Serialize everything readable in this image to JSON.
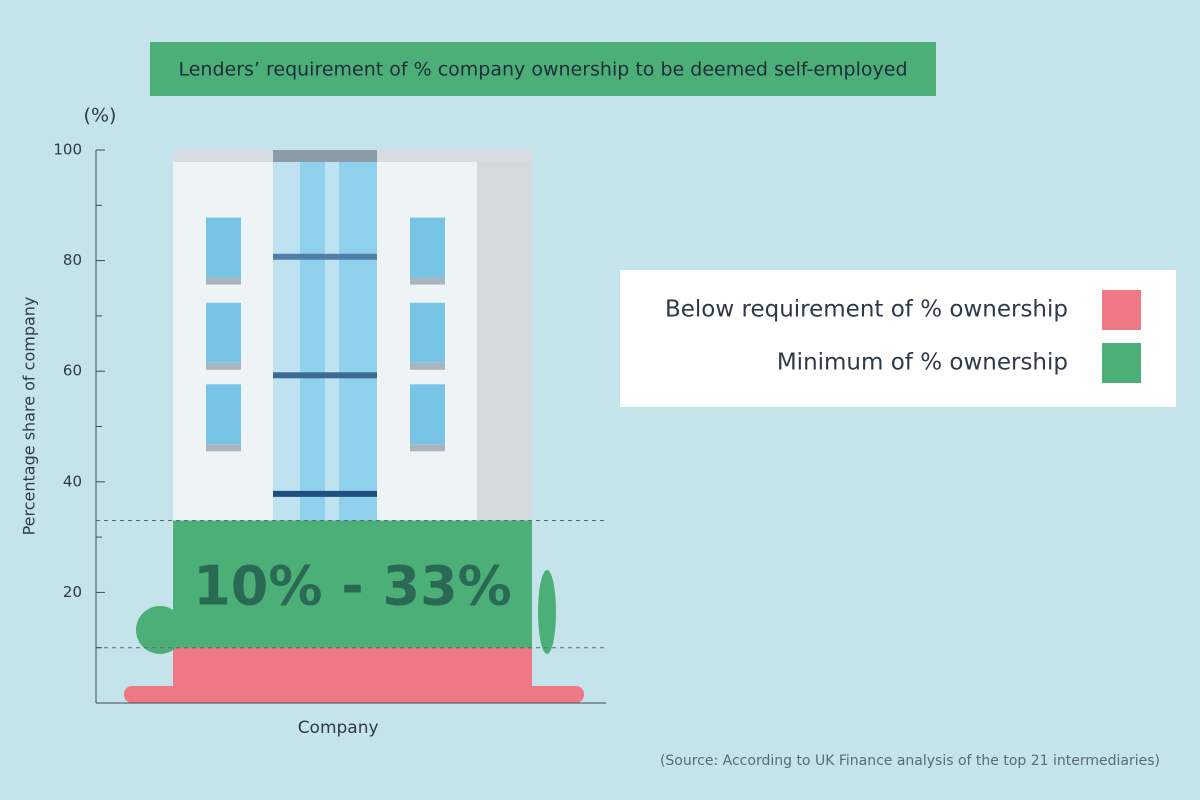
{
  "chart_data": {
    "type": "stacked_bar",
    "title": "Lenders’ requirement of % company ownership to be deemed self-employed",
    "unit_label": "(%)",
    "y_label": "Percentage share of company",
    "categories": [
      "Company"
    ],
    "series": [
      {
        "name": "Below requirement of % ownership",
        "color": "#ee7884",
        "values": [
          10
        ]
      },
      {
        "name": "Minimum of % ownership",
        "color": "#4caf78",
        "values": [
          23
        ]
      }
    ],
    "annotation": "10% - 33%",
    "ylim": [
      0,
      100
    ],
    "yticks": [
      20,
      40,
      60,
      80,
      100
    ],
    "minor_yticks": [
      10,
      30,
      50,
      70,
      90
    ],
    "legend": "right",
    "source": "(Source: According to UK Finance analysis of the top 21 intermediaries)"
  }
}
